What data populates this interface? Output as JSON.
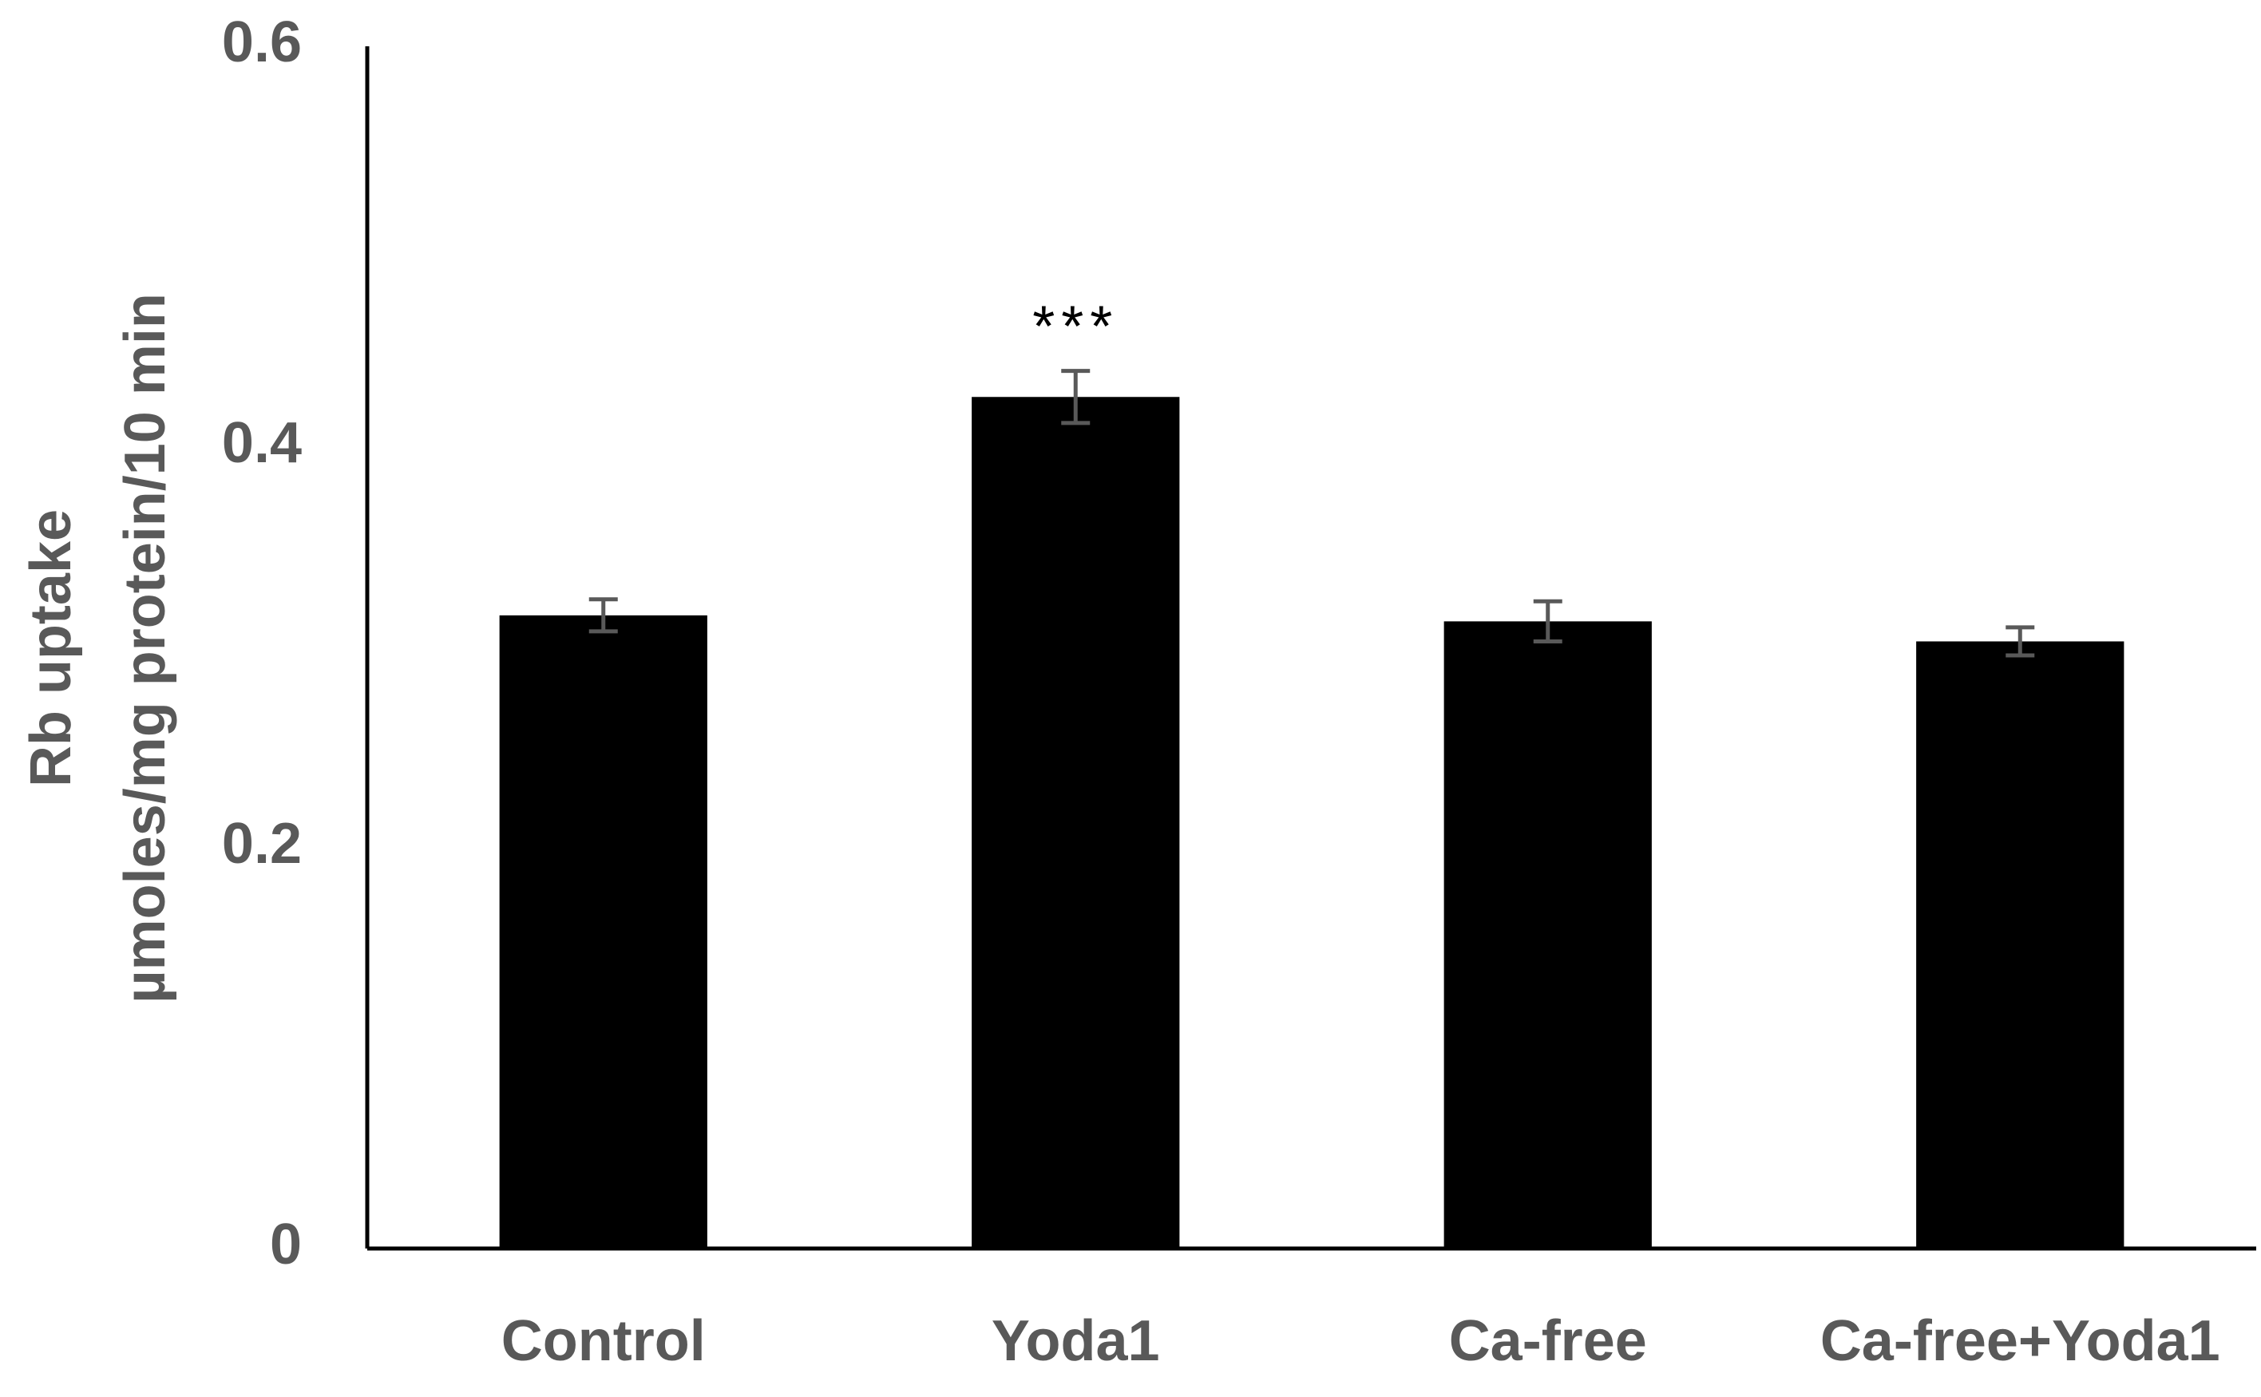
{
  "chart_data": {
    "type": "bar",
    "y_label": [
      "Rb uptake",
      "µmoles/mg protein/10 min"
    ],
    "categories": [
      "Control",
      "Yoda1",
      "Ca-free",
      "Ca-free+Yoda1"
    ],
    "series": [
      {
        "color": "#000000",
        "values": [
          0.316,
          0.425,
          0.313,
          0.303
        ],
        "errors": [
          0.008,
          0.013,
          0.01,
          0.007
        ],
        "error_color": "#595959"
      }
    ],
    "annotations": [
      {
        "text": "***",
        "category": "Yoda1"
      }
    ],
    "ylim": [
      0,
      0.6
    ],
    "yticks": [
      0,
      0.2,
      0.4,
      0.6
    ],
    "grid": false
  }
}
